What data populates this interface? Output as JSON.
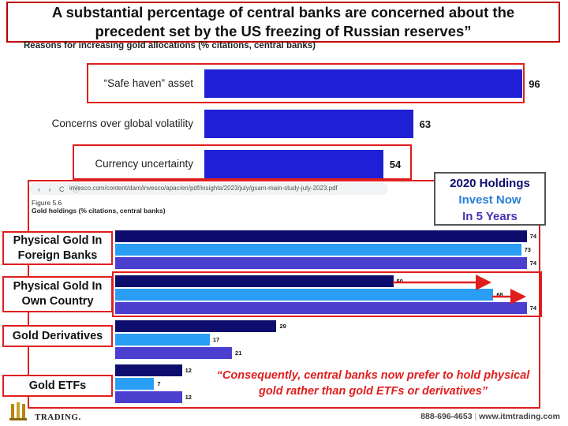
{
  "headline": "A substantial percentage of central banks are concerned about the precedent set by the US freezing of Russian reserves”",
  "colors": {
    "top_bar": "#1f1fd6",
    "highlight_red": "#e01e1e",
    "series_2020": "#0d0d6e",
    "series_now": "#2a9df4",
    "series_5y": "#4a3fcf"
  },
  "browser": {
    "url": "invesco.com/content/dam/invesco/apac/en/pdf/insights/2023/july/gsam-main-study-july-2023.pdf",
    "nav_icons": "‹ › C ⓘ"
  },
  "legend": {
    "item_2020": "2020 Holdings",
    "item_now": "Invest Now",
    "item_5y": "In 5 Years"
  },
  "quote": "“Consequently, central banks now prefer to hold physical gold rather than gold ETFs or derivatives”",
  "footer": {
    "phone": "888-696-4653",
    "separator": "|",
    "website": "www.itmtrading.com",
    "logo_text": "TRADING."
  },
  "chart_data": [
    {
      "type": "bar",
      "orientation": "horizontal",
      "title": "Reasons for increasing gold allocations (% citations, central banks)",
      "categories": [
        "“Safe haven” asset",
        "Concerns over global volatility",
        "Currency uncertainty"
      ],
      "values": [
        96,
        63,
        54
      ],
      "highlighted": [
        "“Safe haven” asset",
        "Currency uncertainty"
      ]
    },
    {
      "type": "bar",
      "orientation": "horizontal",
      "figure_label": "Figure 5.6",
      "title": "Gold holdings (% citations, central banks)",
      "categories": [
        "Physical Gold In Foreign Banks",
        "Physical Gold In Own Country",
        "Gold Derivatives",
        "Gold ETFs"
      ],
      "series": [
        {
          "name": "2020 Holdings",
          "values": [
            74,
            50,
            29,
            12
          ]
        },
        {
          "name": "Invest Now",
          "values": [
            73,
            68,
            17,
            7
          ]
        },
        {
          "name": "In 5 Years",
          "values": [
            74,
            74,
            21,
            12
          ]
        }
      ]
    }
  ]
}
